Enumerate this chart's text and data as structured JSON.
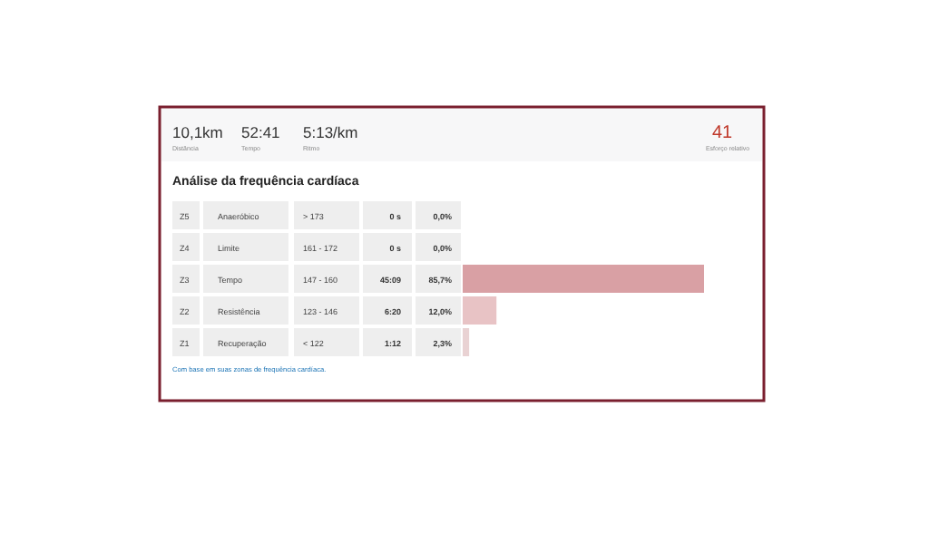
{
  "chart_data": {
    "type": "bar",
    "orientation": "horizontal",
    "title": "Análise da frequência cardíaca",
    "categories": [
      "Z5",
      "Z4",
      "Z3",
      "Z2",
      "Z1"
    ],
    "values": [
      0.0,
      0.0,
      85.7,
      12.0,
      2.3
    ],
    "value_labels": [
      "0,0%",
      "0,0%",
      "85,7%",
      "12,0%",
      "2,3%"
    ],
    "colors": [
      null,
      null,
      "#d9a0a4",
      "#e8c3c5",
      "#e9d2d3"
    ],
    "annotations": [
      "10,1km",
      "Distância",
      "52:41",
      "Tempo",
      "5:13/km",
      "Ritmo",
      "41",
      "Esforço relativo",
      "Anaeróbico",
      "> 173",
      "0 s",
      "Limite",
      "161 - 172",
      "0 s",
      "Tempo",
      "147 - 160",
      "45:09",
      "Resistência",
      "123 - 146",
      "6:20",
      "Recuperação",
      "< 122",
      "1:12",
      "Com base em suas zonas de frequência cardíaca."
    ]
  }
}
